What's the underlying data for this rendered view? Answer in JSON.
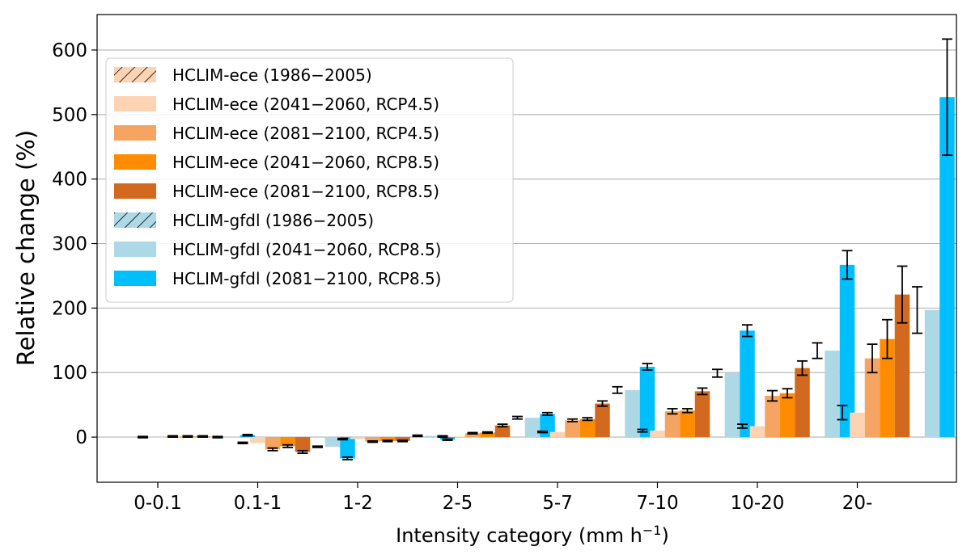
{
  "chart_data": {
    "type": "bar",
    "xlabel": "Intensity category (mm h",
    "xlabel_sup": "−1",
    "xlabel_end": ")",
    "ylabel": "Relative change (%)",
    "ylim": [
      -70,
      655
    ],
    "yticks": [
      0,
      100,
      200,
      300,
      400,
      500,
      600
    ],
    "grid": "horizontal",
    "legend_position": "upper-left",
    "categories": [
      "0-0.1",
      "0.1-1",
      "1-2",
      "2-5",
      "5-7",
      "7-10",
      "10-20",
      "20-"
    ],
    "series": [
      {
        "name": "HCLIM-ece (1986−2005)",
        "color": "#fdd4b3",
        "hatch": true,
        "values": [
          0,
          -9,
          -3,
          1,
          8,
          10,
          17,
          38
        ],
        "errors": [
          1,
          1,
          1,
          1,
          1,
          2,
          3,
          11
        ]
      },
      {
        "name": "HCLIM-ece (2041−2060, RCP4.5)",
        "color": "#fdd4b3",
        "hatch": false,
        "values": [
          0,
          -9,
          -3,
          1,
          8,
          10,
          17,
          38
        ],
        "errors": [
          0,
          0,
          0,
          0,
          0,
          0,
          0,
          0
        ]
      },
      {
        "name": "HCLIM-ece (2081−2100, RCP4.5)",
        "color": "#f5a462",
        "hatch": false,
        "values": [
          1,
          -19,
          -7,
          6,
          26,
          40,
          64,
          122
        ],
        "errors": [
          1,
          2,
          1,
          1,
          2,
          4,
          8,
          22
        ]
      },
      {
        "name": "HCLIM-ece (2041−2060, RCP8.5)",
        "color": "#ff8c00",
        "hatch": false,
        "values": [
          1,
          -14,
          -6,
          7,
          28,
          41,
          68,
          152
        ],
        "errors": [
          1,
          2,
          1,
          1,
          2,
          3,
          7,
          30
        ]
      },
      {
        "name": "HCLIM-ece (2081−2100, RCP8.5)",
        "color": "#d2691e",
        "hatch": false,
        "values": [
          1,
          -23,
          -6,
          18,
          52,
          71,
          107,
          221
        ],
        "errors": [
          1,
          2,
          1,
          2,
          4,
          5,
          11,
          44
        ]
      },
      {
        "name": "HCLIM-gfdl (1986−2005)",
        "color": "#add8e6",
        "hatch": true,
        "values": [
          0,
          -15,
          2,
          30,
          73,
          99,
          134,
          197
        ],
        "errors": [
          1,
          1,
          1,
          2,
          5,
          6,
          12,
          36
        ]
      },
      {
        "name": "HCLIM-gfdl (2041−2060, RCP8.5)",
        "color": "#add8e6",
        "hatch": false,
        "values": [
          0,
          -15,
          2,
          30,
          73,
          99,
          134,
          197
        ],
        "errors": [
          0,
          0,
          0,
          0,
          0,
          0,
          0,
          0
        ]
      },
      {
        "name": "HCLIM-gfdl (2081−2100, RCP8.5)",
        "color": "#00bfff",
        "hatch": false,
        "values": [
          3,
          -33,
          -4,
          36,
          109,
          165,
          267,
          527
        ],
        "errors": [
          1,
          2,
          1,
          2,
          5,
          9,
          22,
          90
        ]
      }
    ]
  }
}
